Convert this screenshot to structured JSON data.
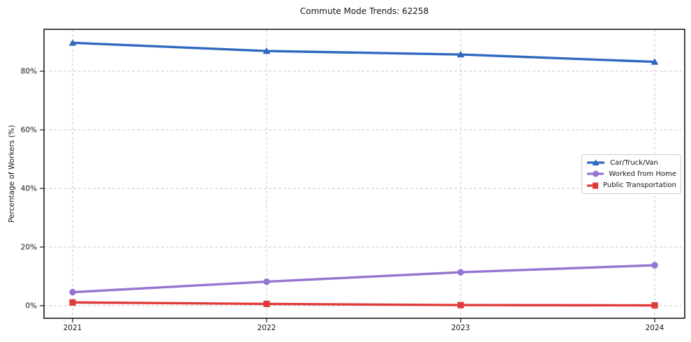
{
  "chart": {
    "title": "Commute Mode Trends: 62258",
    "ylabel": "Percentage of Workers (%)"
  },
  "chart_data": {
    "type": "line",
    "title": "Commute Mode Trends: 62258",
    "xlabel": "",
    "ylabel": "Percentage of Workers (%)",
    "x": [
      2021,
      2022,
      2023,
      2024
    ],
    "x_tick_labels": [
      "2021",
      "2022",
      "2023",
      "2024"
    ],
    "y_ticks": [
      0,
      20,
      40,
      60,
      80
    ],
    "y_tick_labels": [
      "0%",
      "20%",
      "40%",
      "60%",
      "80%"
    ],
    "ylim": [
      -4.3,
      94.3
    ],
    "grid": true,
    "grid_style": "dashed",
    "legend_position": "center-right",
    "series": [
      {
        "name": "Car/Truck/Van",
        "color": "#2f69be",
        "marker": "triangle",
        "values": [
          89.7,
          86.9,
          85.7,
          83.2
        ]
      },
      {
        "name": "Worked from Home",
        "color": "#9675d0",
        "marker": "circle",
        "values": [
          4.6,
          8.2,
          11.4,
          13.8
        ]
      },
      {
        "name": "Public Transportation",
        "color": "#e03b3b",
        "marker": "square",
        "values": [
          1.1,
          0.6,
          0.2,
          0.1
        ]
      }
    ],
    "colors": {
      "axis": "#1a1a1a",
      "grid": "#cbcbcb",
      "text": "#151515",
      "background": "#ffffff"
    }
  }
}
